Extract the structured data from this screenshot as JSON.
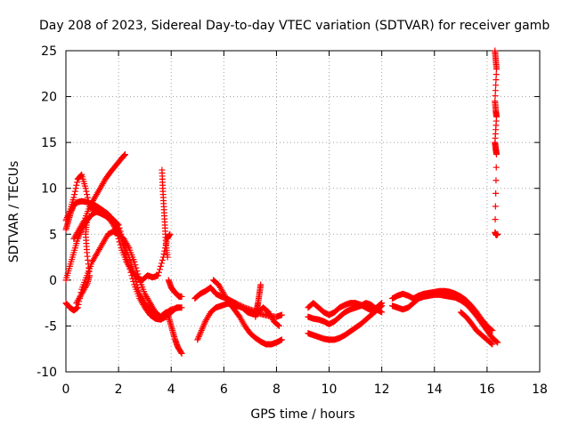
{
  "chart_data": {
    "type": "scatter",
    "title": "Day 208 of 2023, Sidereal Day-to-day VTEC variation (SDTVAR) for receiver gamb",
    "xlabel": "GPS time / hours",
    "ylabel": "SDTVAR / TECUs",
    "xlim": [
      0,
      18
    ],
    "ylim": [
      -10,
      25
    ],
    "xticks": [
      "0",
      "2",
      "4",
      "6",
      "8",
      "10",
      "12",
      "14",
      "16",
      "18"
    ],
    "yticks": [
      "-10",
      "-5",
      "0",
      "5",
      "10",
      "15",
      "20",
      "25"
    ],
    "grid": true,
    "marker": "+",
    "color": "#ff0000",
    "series": [
      {
        "name": "a",
        "points": [
          [
            0.0,
            6.5
          ],
          [
            0.15,
            7.5
          ],
          [
            0.3,
            9
          ],
          [
            0.45,
            11
          ],
          [
            0.6,
            11.5
          ],
          [
            0.75,
            10
          ],
          [
            0.9,
            8
          ],
          [
            1.1,
            7.5
          ],
          [
            1.3,
            7.3
          ],
          [
            1.5,
            7
          ],
          [
            1.7,
            6.5
          ],
          [
            1.9,
            5.5
          ],
          [
            2.1,
            3.5
          ],
          [
            2.3,
            2
          ],
          [
            2.5,
            1
          ],
          [
            2.7,
            0.3
          ],
          [
            2.9,
            0
          ],
          [
            3.1,
            0.5
          ],
          [
            3.3,
            0.3
          ],
          [
            3.5,
            0.5
          ],
          [
            3.7,
            2.5
          ],
          [
            3.85,
            4.5
          ],
          [
            3.95,
            5
          ]
        ]
      },
      {
        "name": "b",
        "points": [
          [
            0.0,
            5.5
          ],
          [
            0.1,
            6.5
          ],
          [
            0.2,
            7.5
          ],
          [
            0.3,
            8.2
          ],
          [
            0.45,
            8.5
          ],
          [
            0.6,
            8.6
          ],
          [
            0.8,
            8.5
          ],
          [
            1.0,
            8.3
          ],
          [
            1.2,
            8
          ],
          [
            1.4,
            7.6
          ],
          [
            1.6,
            7.2
          ],
          [
            1.8,
            6.5
          ],
          [
            2.0,
            5.5
          ],
          [
            2.2,
            3.5
          ],
          [
            2.4,
            1.5
          ],
          [
            2.6,
            -0.5
          ],
          [
            2.8,
            -2
          ],
          [
            3.0,
            -3
          ],
          [
            3.2,
            -3.8
          ],
          [
            3.4,
            -4.2
          ],
          [
            3.6,
            -4.3
          ],
          [
            3.8,
            -4
          ],
          [
            4.0,
            -3.5
          ],
          [
            4.2,
            -3
          ],
          [
            4.4,
            -3
          ]
        ]
      },
      {
        "name": "c",
        "points": [
          [
            0.0,
            0
          ],
          [
            0.15,
            1.5
          ],
          [
            0.3,
            3
          ],
          [
            0.45,
            4.5
          ],
          [
            0.6,
            5.5
          ],
          [
            0.8,
            6.5
          ],
          [
            1.0,
            7.2
          ],
          [
            1.2,
            7.5
          ],
          [
            1.4,
            7.3
          ],
          [
            1.6,
            7
          ],
          [
            1.8,
            6.6
          ],
          [
            2.0,
            6
          ],
          [
            2.2,
            4
          ],
          [
            2.4,
            2.5
          ],
          [
            2.6,
            0.5
          ],
          [
            2.8,
            -1.5
          ],
          [
            3.0,
            -2.5
          ],
          [
            3.2,
            -3.3
          ],
          [
            3.4,
            -3.8
          ],
          [
            3.6,
            -4
          ],
          [
            3.8,
            -3.6
          ],
          [
            4.0,
            -3.2
          ],
          [
            4.3,
            -3
          ]
        ]
      },
      {
        "name": "d",
        "points": [
          [
            0.0,
            -2.5
          ],
          [
            0.15,
            -3
          ],
          [
            0.3,
            -3.3
          ],
          [
            0.45,
            -3
          ],
          [
            0.6,
            -1
          ],
          [
            0.8,
            0.5
          ],
          [
            1.0,
            2
          ],
          [
            1.2,
            3
          ],
          [
            1.4,
            4
          ],
          [
            1.6,
            5
          ],
          [
            1.8,
            5.3
          ],
          [
            2.0,
            5
          ],
          [
            2.2,
            4.5
          ],
          [
            2.4,
            3.5
          ],
          [
            2.6,
            2
          ],
          [
            2.8,
            0
          ],
          [
            3.0,
            -1.5
          ],
          [
            3.2,
            -2.5
          ],
          [
            3.4,
            -3.5
          ],
          [
            3.6,
            -4
          ],
          [
            3.8,
            -3.5
          ]
        ]
      },
      {
        "name": "e",
        "points": [
          [
            0.3,
            4.5
          ],
          [
            0.5,
            5.5
          ],
          [
            0.7,
            6.5
          ],
          [
            0.9,
            8
          ],
          [
            1.1,
            9
          ],
          [
            1.3,
            10
          ],
          [
            1.5,
            11
          ],
          [
            1.7,
            11.8
          ],
          [
            1.9,
            12.5
          ],
          [
            2.1,
            13.2
          ],
          [
            2.25,
            13.7
          ]
        ]
      },
      {
        "name": "f",
        "points": [
          [
            0.4,
            -2.5
          ],
          [
            0.6,
            -1.5
          ],
          [
            0.8,
            -0.5
          ],
          [
            0.9,
            0.5
          ],
          [
            0.8,
            3
          ],
          [
            0.75,
            5
          ],
          [
            0.8,
            6.5
          ]
        ]
      },
      {
        "name": "g",
        "points": [
          [
            3.65,
            12
          ],
          [
            3.68,
            10
          ],
          [
            3.72,
            8
          ],
          [
            3.76,
            6
          ],
          [
            3.8,
            4
          ],
          [
            3.86,
            2.5
          ]
        ]
      },
      {
        "name": "h",
        "points": [
          [
            3.9,
            0
          ],
          [
            4.0,
            -0.8
          ],
          [
            4.1,
            -1.2
          ],
          [
            4.2,
            -1.5
          ],
          [
            4.3,
            -1.8
          ],
          [
            4.4,
            -1.8
          ]
        ]
      },
      {
        "name": "i",
        "points": [
          [
            3.85,
            -3.5
          ],
          [
            3.95,
            -4.5
          ],
          [
            4.05,
            -5.5
          ],
          [
            4.15,
            -6.5
          ],
          [
            4.25,
            -7.3
          ],
          [
            4.4,
            -8
          ]
        ]
      },
      {
        "name": "j",
        "points": [
          [
            4.9,
            -2
          ],
          [
            5.1,
            -1.5
          ],
          [
            5.3,
            -1.2
          ],
          [
            5.5,
            -0.8
          ],
          [
            5.7,
            -1.5
          ],
          [
            5.9,
            -1.8
          ],
          [
            6.1,
            -2
          ],
          [
            6.3,
            -2.3
          ],
          [
            6.5,
            -2.6
          ],
          [
            6.8,
            -3
          ],
          [
            7.1,
            -3.3
          ],
          [
            7.4,
            -3.7
          ],
          [
            7.7,
            -3.9
          ],
          [
            8.0,
            -4
          ],
          [
            8.2,
            -3.8
          ]
        ]
      },
      {
        "name": "k",
        "points": [
          [
            5.0,
            -6.5
          ],
          [
            5.15,
            -5.5
          ],
          [
            5.3,
            -4.5
          ],
          [
            5.5,
            -3.5
          ],
          [
            5.7,
            -3
          ],
          [
            5.9,
            -2.8
          ],
          [
            6.1,
            -2.6
          ],
          [
            6.3,
            -2.5
          ],
          [
            6.5,
            -2.8
          ],
          [
            6.7,
            -3
          ],
          [
            6.9,
            -3.5
          ],
          [
            7.1,
            -3.7
          ],
          [
            7.3,
            -3.5
          ],
          [
            7.5,
            -3
          ],
          [
            7.7,
            -3.5
          ],
          [
            7.9,
            -4.5
          ],
          [
            8.1,
            -5
          ]
        ]
      },
      {
        "name": "l",
        "points": [
          [
            5.6,
            0
          ],
          [
            5.8,
            -0.5
          ],
          [
            6.0,
            -1.5
          ],
          [
            6.2,
            -2.5
          ],
          [
            6.4,
            -3.2
          ],
          [
            6.6,
            -4
          ],
          [
            6.8,
            -5
          ],
          [
            7.0,
            -5.8
          ],
          [
            7.2,
            -6.3
          ],
          [
            7.4,
            -6.7
          ],
          [
            7.6,
            -7
          ],
          [
            7.8,
            -7
          ],
          [
            8.0,
            -6.8
          ],
          [
            8.2,
            -6.5
          ]
        ]
      },
      {
        "name": "m",
        "points": [
          [
            7.4,
            -0.5
          ],
          [
            7.35,
            -1.5
          ],
          [
            7.3,
            -2.5
          ],
          [
            7.25,
            -3.3
          ],
          [
            7.2,
            -4
          ]
        ]
      },
      {
        "name": "n",
        "points": [
          [
            9.2,
            -3
          ],
          [
            9.4,
            -2.5
          ],
          [
            9.6,
            -3
          ],
          [
            9.8,
            -3.5
          ],
          [
            10.0,
            -3.8
          ],
          [
            10.2,
            -3.5
          ],
          [
            10.4,
            -3
          ],
          [
            10.6,
            -2.7
          ],
          [
            10.8,
            -2.5
          ],
          [
            11.0,
            -2.5
          ],
          [
            11.2,
            -2.7
          ],
          [
            11.4,
            -3
          ],
          [
            11.6,
            -3.3
          ],
          [
            11.8,
            -3
          ],
          [
            12.0,
            -2.5
          ]
        ]
      },
      {
        "name": "o",
        "points": [
          [
            9.2,
            -4
          ],
          [
            9.4,
            -4.2
          ],
          [
            9.6,
            -4.3
          ],
          [
            9.8,
            -4.5
          ],
          [
            10.0,
            -4.8
          ],
          [
            10.2,
            -4.5
          ],
          [
            10.4,
            -4
          ],
          [
            10.6,
            -3.5
          ],
          [
            10.8,
            -3.2
          ],
          [
            11.0,
            -3
          ],
          [
            11.2,
            -2.8
          ],
          [
            11.4,
            -2.5
          ],
          [
            11.6,
            -2.7
          ],
          [
            11.8,
            -3.2
          ],
          [
            12.0,
            -3.5
          ]
        ]
      },
      {
        "name": "p",
        "points": [
          [
            9.2,
            -5.8
          ],
          [
            9.4,
            -6
          ],
          [
            9.6,
            -6.2
          ],
          [
            9.8,
            -6.4
          ],
          [
            10.0,
            -6.5
          ],
          [
            10.2,
            -6.5
          ],
          [
            10.4,
            -6.3
          ],
          [
            10.6,
            -6
          ],
          [
            10.8,
            -5.6
          ],
          [
            11.0,
            -5.2
          ],
          [
            11.2,
            -4.8
          ],
          [
            11.4,
            -4.3
          ],
          [
            11.6,
            -3.8
          ],
          [
            11.8,
            -3.3
          ],
          [
            12.0,
            -2.8
          ]
        ]
      },
      {
        "name": "q",
        "points": [
          [
            12.4,
            -2
          ],
          [
            12.6,
            -1.7
          ],
          [
            12.8,
            -1.5
          ],
          [
            13.0,
            -1.7
          ],
          [
            13.2,
            -2
          ],
          [
            13.4,
            -1.7
          ],
          [
            13.6,
            -1.5
          ],
          [
            13.8,
            -1.4
          ],
          [
            14.0,
            -1.3
          ],
          [
            14.2,
            -1.2
          ],
          [
            14.4,
            -1.2
          ],
          [
            14.6,
            -1.3
          ],
          [
            14.8,
            -1.5
          ],
          [
            15.0,
            -1.8
          ],
          [
            15.2,
            -2.2
          ],
          [
            15.4,
            -2.8
          ],
          [
            15.6,
            -3.5
          ],
          [
            15.8,
            -4.3
          ],
          [
            16.0,
            -5
          ],
          [
            16.2,
            -5.5
          ]
        ]
      },
      {
        "name": "r",
        "points": [
          [
            12.4,
            -2.8
          ],
          [
            12.6,
            -3
          ],
          [
            12.8,
            -3.2
          ],
          [
            13.0,
            -3
          ],
          [
            13.2,
            -2.5
          ],
          [
            13.4,
            -2
          ],
          [
            13.6,
            -1.8
          ],
          [
            13.8,
            -1.7
          ],
          [
            14.0,
            -1.6
          ],
          [
            14.2,
            -1.6
          ],
          [
            14.4,
            -1.7
          ],
          [
            14.6,
            -1.8
          ],
          [
            14.8,
            -1.9
          ],
          [
            15.0,
            -2.2
          ],
          [
            15.2,
            -2.6
          ],
          [
            15.4,
            -3.2
          ],
          [
            15.6,
            -3.9
          ],
          [
            15.8,
            -4.7
          ],
          [
            16.0,
            -5.5
          ],
          [
            16.2,
            -6.3
          ],
          [
            16.4,
            -6.8
          ]
        ]
      },
      {
        "name": "s",
        "points": [
          [
            15.0,
            -3.5
          ],
          [
            15.2,
            -4
          ],
          [
            15.4,
            -4.7
          ],
          [
            15.6,
            -5.5
          ],
          [
            15.8,
            -6
          ],
          [
            16.0,
            -6.5
          ],
          [
            16.2,
            -7
          ]
        ]
      },
      {
        "name": "t",
        "points": [
          [
            16.3,
            25
          ],
          [
            16.33,
            24
          ],
          [
            16.36,
            23
          ],
          [
            16.3,
            19.5
          ],
          [
            16.33,
            18.5
          ],
          [
            16.36,
            17.8
          ],
          [
            16.3,
            15
          ],
          [
            16.33,
            14.3
          ],
          [
            16.36,
            13.7
          ],
          [
            16.3,
            5.2
          ],
          [
            16.35,
            4.9
          ],
          [
            16.4,
            5
          ]
        ]
      }
    ]
  }
}
